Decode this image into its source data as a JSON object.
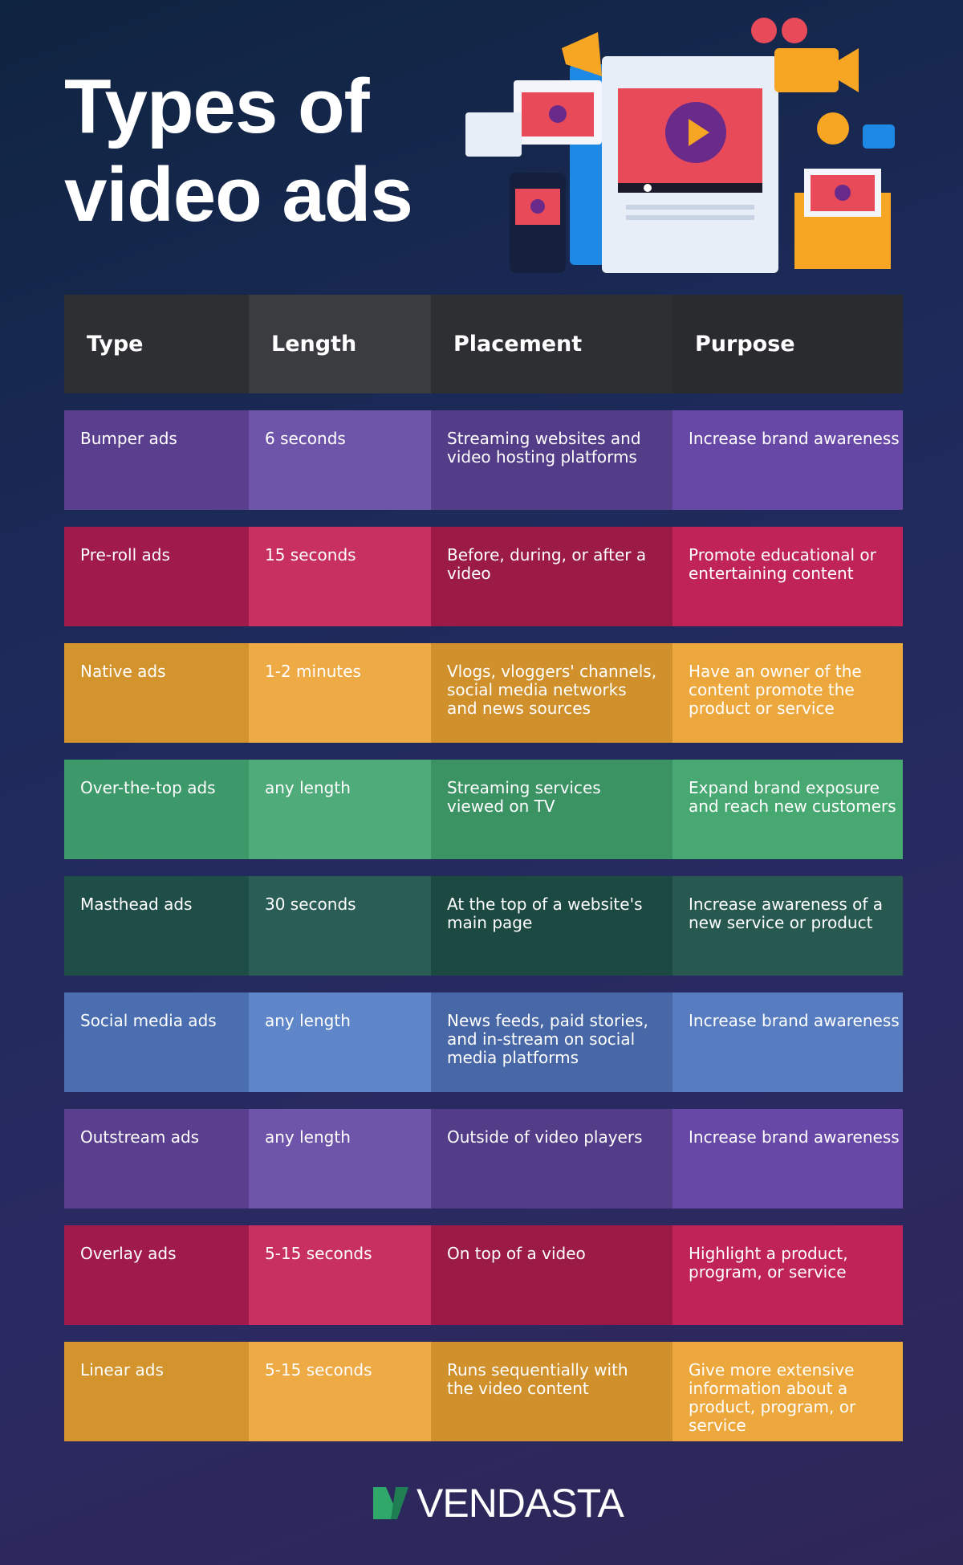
{
  "header": {
    "title_lines": [
      "Types of",
      "video ads"
    ]
  },
  "table": {
    "columns": [
      "Type",
      "Length",
      "Placement",
      "Purpose"
    ],
    "rows": [
      [
        "Bumper ads",
        "6 seconds",
        "Streaming websites and video hosting platforms",
        "Increase brand awareness"
      ],
      [
        "Pre-roll ads",
        "15 seconds",
        "Before, during, or after a video",
        "Promote educational or entertaining content"
      ],
      [
        "Native ads",
        "1-2 minutes",
        "Vlogs, vloggers' channels, social media networks and news sources",
        "Have an owner of the content promote the product or service"
      ],
      [
        "Over-the-top ads",
        "any length",
        "Streaming services viewed on TV",
        "Expand brand exposure and reach new customers"
      ],
      [
        "Masthead ads",
        "30 seconds",
        "At the top of a website's main page",
        "Increase awareness of a new service or product"
      ],
      [
        "Social media ads",
        "any length",
        "News feeds, paid stories, and in-stream on social media platforms",
        "Increase brand awareness"
      ],
      [
        "Outstream ads",
        "any length",
        "Outside of video players",
        "Increase brand awareness"
      ],
      [
        "Overlay ads",
        "5-15 seconds",
        "On top of a video",
        "Highlight a product, program, or service"
      ],
      [
        "Linear ads",
        "5-15 seconds",
        "Runs sequentially with the video content",
        "Give more extensive information about a product, program, or service"
      ]
    ]
  },
  "footer": {
    "brand": "VENDASTA"
  }
}
